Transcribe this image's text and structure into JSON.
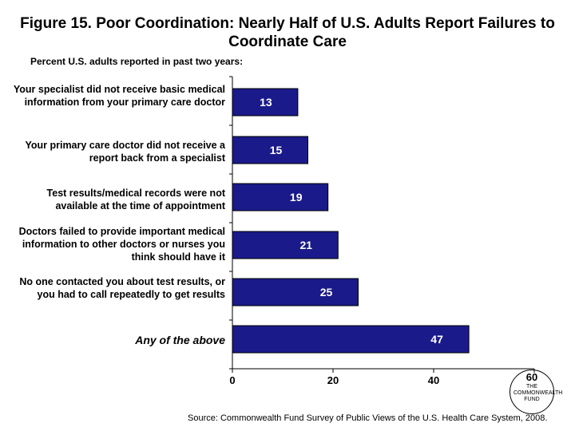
{
  "title": "Figure 15. Poor Coordination: Nearly Half of U.S. Adults Report Failures to Coordinate Care",
  "subtitle": "Percent U.S. adults reported in past two years:",
  "source": "Source: Commonwealth Fund Survey of Public Views of the U.S. Health Care System, 2008.",
  "logo": {
    "num": "60",
    "text": "THE COMMONWEALTH FUND"
  },
  "colors": {
    "bar": "#1a1a8a",
    "bar_border": "#000000",
    "value_text": "#ffffff"
  },
  "chart_data": {
    "type": "bar",
    "orientation": "horizontal",
    "categories": [
      "Your specialist did not receive basic medical information from your primary care doctor",
      "Your primary care doctor did not receive a report back from a specialist",
      "Test results/medical records were not available at the time of appointment",
      "Doctors failed to provide important medical information to other doctors or nurses you think should have it",
      "No one contacted you about test results, or you had to call repeatedly to get results",
      "Any of the above"
    ],
    "values": [
      13,
      15,
      19,
      21,
      25,
      47
    ],
    "data_labels": [
      "13",
      "15",
      "19",
      "21",
      "25",
      "47"
    ],
    "xlim": [
      0,
      60
    ],
    "xticks": [
      "0",
      "20",
      "40",
      "60"
    ],
    "grid": false
  }
}
